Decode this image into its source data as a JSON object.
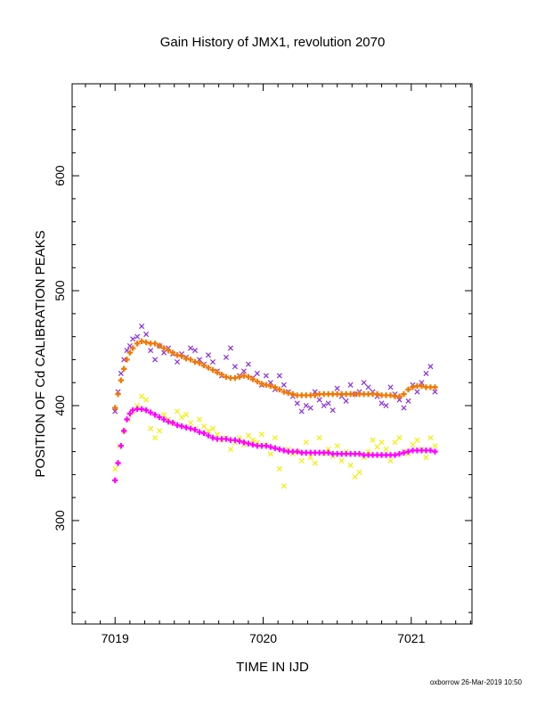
{
  "footer": "oxborrow 26-Mar-2019 10:50",
  "chart_data": {
    "type": "scatter",
    "title": "Gain History of JMX1, revolution 2070",
    "xlabel": "TIME IN IJD",
    "ylabel": "POSITION OF Cd CALIBRATION PEAKS",
    "xlim": [
      7018.71,
      7021.41
    ],
    "ylim": [
      210,
      680
    ],
    "xticks": [
      7019,
      7020,
      7021
    ],
    "yticks": [
      300,
      400,
      500,
      600
    ],
    "grid": false,
    "colors": {
      "purple": "#8a2be2",
      "orange": "#f07800",
      "yellow": "#f0f000",
      "magenta": "#ff00ff"
    },
    "series": [
      {
        "marker": "x",
        "color": "#8a2be2",
        "x": [
          7019.0,
          7019.02,
          7019.04,
          7019.06,
          7019.08,
          7019.1,
          7019.12,
          7019.15,
          7019.18,
          7019.21,
          7019.24,
          7019.27,
          7019.3,
          7019.33,
          7019.36,
          7019.39,
          7019.42,
          7019.45,
          7019.48,
          7019.51,
          7019.54,
          7019.57,
          7019.6,
          7019.63,
          7019.66,
          7019.69,
          7019.72,
          7019.75,
          7019.78,
          7019.81,
          7019.84,
          7019.87,
          7019.9,
          7019.93,
          7019.96,
          7019.99,
          7020.02,
          7020.05,
          7020.08,
          7020.11,
          7020.14,
          7020.17,
          7020.2,
          7020.23,
          7020.26,
          7020.29,
          7020.32,
          7020.35,
          7020.38,
          7020.41,
          7020.44,
          7020.47,
          7020.5,
          7020.53,
          7020.56,
          7020.59,
          7020.62,
          7020.65,
          7020.68,
          7020.71,
          7020.74,
          7020.77,
          7020.8,
          7020.83,
          7020.86,
          7020.89,
          7020.92,
          7020.95,
          7020.98,
          7021.01,
          7021.04,
          7021.07,
          7021.1,
          7021.13,
          7021.16
        ],
        "y": [
          395,
          412,
          428,
          440,
          448,
          452,
          458,
          460,
          469,
          462,
          448,
          440,
          452,
          446,
          450,
          445,
          438,
          445,
          442,
          450,
          448,
          440,
          436,
          444,
          438,
          430,
          426,
          442,
          450,
          434,
          426,
          430,
          436,
          424,
          428,
          418,
          426,
          420,
          414,
          426,
          418,
          412,
          408,
          402,
          395,
          400,
          398,
          412,
          405,
          400,
          402,
          396,
          415,
          408,
          404,
          418,
          410,
          412,
          420,
          416,
          412,
          408,
          402,
          400,
          416,
          410,
          405,
          398,
          404,
          418,
          412,
          420,
          428,
          434,
          412
        ]
      },
      {
        "marker": "+",
        "color": "#f07800",
        "x": [
          7019.0,
          7019.02,
          7019.04,
          7019.06,
          7019.08,
          7019.1,
          7019.12,
          7019.15,
          7019.18,
          7019.21,
          7019.24,
          7019.27,
          7019.3,
          7019.33,
          7019.36,
          7019.39,
          7019.42,
          7019.45,
          7019.48,
          7019.51,
          7019.54,
          7019.57,
          7019.6,
          7019.63,
          7019.66,
          7019.69,
          7019.72,
          7019.75,
          7019.78,
          7019.81,
          7019.84,
          7019.87,
          7019.9,
          7019.93,
          7019.96,
          7019.99,
          7020.02,
          7020.05,
          7020.08,
          7020.11,
          7020.14,
          7020.17,
          7020.2,
          7020.23,
          7020.26,
          7020.29,
          7020.32,
          7020.35,
          7020.38,
          7020.41,
          7020.44,
          7020.47,
          7020.5,
          7020.53,
          7020.56,
          7020.59,
          7020.62,
          7020.65,
          7020.68,
          7020.71,
          7020.74,
          7020.77,
          7020.8,
          7020.83,
          7020.86,
          7020.89,
          7020.92,
          7020.95,
          7020.98,
          7021.01,
          7021.04,
          7021.07,
          7021.1,
          7021.13,
          7021.16
        ],
        "y": [
          398,
          410,
          422,
          432,
          440,
          446,
          450,
          454,
          456,
          455,
          454,
          454,
          452,
          450,
          448,
          446,
          444,
          443,
          441,
          440,
          438,
          437,
          435,
          433,
          431,
          429,
          427,
          425,
          424,
          424,
          425,
          426,
          425,
          423,
          421,
          419,
          418,
          417,
          416,
          414,
          412,
          411,
          410,
          409,
          409,
          409,
          409,
          409,
          410,
          410,
          410,
          410,
          410,
          410,
          410,
          410,
          410,
          410,
          410,
          410,
          410,
          410,
          409,
          409,
          409,
          408,
          408,
          410,
          414,
          416,
          417,
          417,
          416,
          416,
          416
        ]
      },
      {
        "marker": "x",
        "color": "#f0f000",
        "x": [
          7019.0,
          7019.03,
          7019.06,
          7019.09,
          7019.12,
          7019.15,
          7019.18,
          7019.21,
          7019.24,
          7019.27,
          7019.3,
          7019.33,
          7019.36,
          7019.39,
          7019.42,
          7019.45,
          7019.48,
          7019.51,
          7019.54,
          7019.57,
          7019.6,
          7019.63,
          7019.66,
          7019.69,
          7019.72,
          7019.75,
          7019.78,
          7019.81,
          7019.84,
          7019.87,
          7019.9,
          7019.93,
          7019.96,
          7019.99,
          7020.02,
          7020.05,
          7020.08,
          7020.11,
          7020.14,
          7020.17,
          7020.2,
          7020.23,
          7020.26,
          7020.29,
          7020.32,
          7020.35,
          7020.38,
          7020.41,
          7020.44,
          7020.47,
          7020.5,
          7020.53,
          7020.56,
          7020.59,
          7020.62,
          7020.65,
          7020.68,
          7020.71,
          7020.74,
          7020.77,
          7020.8,
          7020.83,
          7020.86,
          7020.89,
          7020.92,
          7020.95,
          7020.98,
          7021.01,
          7021.04,
          7021.07,
          7021.1,
          7021.13,
          7021.16
        ],
        "y": [
          345,
          365,
          378,
          388,
          395,
          400,
          408,
          405,
          380,
          372,
          378,
          392,
          388,
          385,
          395,
          390,
          392,
          385,
          380,
          388,
          382,
          378,
          380,
          375,
          370,
          372,
          362,
          368,
          372,
          366,
          374,
          370,
          368,
          375,
          366,
          358,
          372,
          345,
          330,
          362,
          358,
          360,
          352,
          368,
          355,
          350,
          372,
          358,
          362,
          356,
          365,
          352,
          360,
          348,
          338,
          342,
          355,
          360,
          370,
          364,
          368,
          362,
          352,
          368,
          372,
          360,
          358,
          366,
          370,
          362,
          355,
          372,
          365
        ]
      },
      {
        "marker": "+",
        "color": "#ff00ff",
        "x": [
          7019.0,
          7019.02,
          7019.04,
          7019.06,
          7019.08,
          7019.1,
          7019.12,
          7019.15,
          7019.18,
          7019.21,
          7019.24,
          7019.27,
          7019.3,
          7019.33,
          7019.36,
          7019.39,
          7019.42,
          7019.45,
          7019.48,
          7019.51,
          7019.54,
          7019.57,
          7019.6,
          7019.63,
          7019.66,
          7019.69,
          7019.72,
          7019.75,
          7019.78,
          7019.81,
          7019.84,
          7019.87,
          7019.9,
          7019.93,
          7019.96,
          7019.99,
          7020.02,
          7020.05,
          7020.08,
          7020.11,
          7020.14,
          7020.17,
          7020.2,
          7020.23,
          7020.26,
          7020.29,
          7020.32,
          7020.35,
          7020.38,
          7020.41,
          7020.44,
          7020.47,
          7020.5,
          7020.53,
          7020.56,
          7020.59,
          7020.62,
          7020.65,
          7020.68,
          7020.71,
          7020.74,
          7020.77,
          7020.8,
          7020.83,
          7020.86,
          7020.89,
          7020.92,
          7020.95,
          7020.98,
          7021.01,
          7021.04,
          7021.07,
          7021.1,
          7021.13,
          7021.16
        ],
        "y": [
          335,
          350,
          365,
          378,
          388,
          393,
          396,
          397,
          397,
          396,
          394,
          392,
          390,
          388,
          386,
          385,
          383,
          382,
          381,
          380,
          379,
          377,
          376,
          374,
          372,
          371,
          371,
          371,
          370,
          370,
          369,
          368,
          367,
          366,
          365,
          365,
          365,
          364,
          363,
          362,
          361,
          360,
          360,
          360,
          359,
          359,
          359,
          359,
          359,
          359,
          359,
          358,
          358,
          358,
          358,
          358,
          358,
          358,
          357,
          357,
          357,
          357,
          357,
          357,
          357,
          357,
          358,
          359,
          360,
          361,
          361,
          361,
          361,
          361,
          360
        ]
      }
    ]
  }
}
